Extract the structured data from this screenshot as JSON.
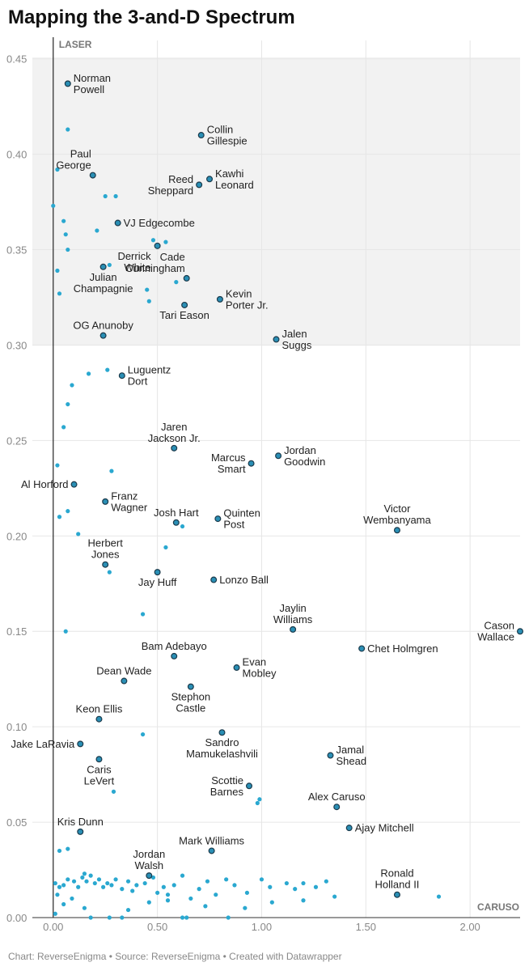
{
  "title": "Mapping the 3-and-D Spectrum",
  "footer": {
    "text": "Chart: ReverseEnigma • Source: ReverseEnigma • Created with Datawrapper"
  },
  "colors": {
    "point_fill": "#2aa8d0",
    "labeled_fill": "#2a8fb5",
    "point_stroke": "#1b3a4b",
    "region_fill": "#f2f2f2",
    "grid": "#e6e6e6",
    "axis": "#333333"
  },
  "chart_data": {
    "type": "scatter",
    "title": "Mapping the 3-and-D Spectrum",
    "xlabel": "",
    "ylabel": "",
    "xlim": [
      -0.1,
      2.24
    ],
    "ylim": [
      0.0,
      0.452
    ],
    "x_ticks": [
      0,
      0.5,
      1,
      1.5,
      2
    ],
    "x_tick_labels": [
      "0.00",
      "0.50",
      "1.00",
      "1.50",
      "2.00"
    ],
    "y_ticks": [
      0,
      0.05,
      0.1,
      0.15,
      0.2,
      0.25,
      0.3,
      0.35,
      0.4,
      0.45
    ],
    "y_tick_labels": [
      "0.00",
      "0.05",
      "0.10",
      "0.15",
      "0.20",
      "0.25",
      "0.30",
      "0.35",
      "0.40",
      "0.45"
    ],
    "highlight_region": {
      "y_from": 0.3,
      "y_to": 0.45
    },
    "corner_labels": {
      "top_left": "LASER",
      "bottom_right": "CARUSO"
    },
    "labeled_points": [
      {
        "name": "Norman\nPowell",
        "x": 0.07,
        "y": 0.437,
        "pos": "right"
      },
      {
        "name": "Collin\nGillespie",
        "x": 0.71,
        "y": 0.41,
        "pos": "right"
      },
      {
        "name": "Paul\nGeorge",
        "x": 0.19,
        "y": 0.389,
        "pos": "above-left"
      },
      {
        "name": "Kawhi\nLeonard",
        "x": 0.75,
        "y": 0.387,
        "pos": "right"
      },
      {
        "name": "Reed\nSheppard",
        "x": 0.7,
        "y": 0.384,
        "pos": "left"
      },
      {
        "name": "VJ Edgecombe",
        "x": 0.31,
        "y": 0.364,
        "pos": "right"
      },
      {
        "name": "Derrick\nWhite",
        "x": 0.5,
        "y": 0.352,
        "pos": "below-left"
      },
      {
        "name": "Cade\nCunningham",
        "x": 0.64,
        "y": 0.335,
        "pos": "above-left"
      },
      {
        "name": "Julian\nChampagnie",
        "x": 0.24,
        "y": 0.341,
        "pos": "below"
      },
      {
        "name": "Kevin\nPorter Jr.",
        "x": 0.8,
        "y": 0.324,
        "pos": "right"
      },
      {
        "name": "Tari Eason",
        "x": 0.63,
        "y": 0.321,
        "pos": "below"
      },
      {
        "name": "OG Anunoby",
        "x": 0.24,
        "y": 0.305,
        "pos": "above"
      },
      {
        "name": "Jalen\nSuggs",
        "x": 1.07,
        "y": 0.303,
        "pos": "right"
      },
      {
        "name": "Luguentz\nDort",
        "x": 0.33,
        "y": 0.284,
        "pos": "right"
      },
      {
        "name": "Jaren\nJackson Jr.",
        "x": 0.58,
        "y": 0.246,
        "pos": "above"
      },
      {
        "name": "Jordan\nGoodwin",
        "x": 1.08,
        "y": 0.242,
        "pos": "right"
      },
      {
        "name": "Marcus\nSmart",
        "x": 0.95,
        "y": 0.238,
        "pos": "left"
      },
      {
        "name": "Al Horford",
        "x": 0.1,
        "y": 0.227,
        "pos": "left"
      },
      {
        "name": "Franz\nWagner",
        "x": 0.25,
        "y": 0.218,
        "pos": "right"
      },
      {
        "name": "Josh Hart",
        "x": 0.59,
        "y": 0.207,
        "pos": "above"
      },
      {
        "name": "Quinten\nPost",
        "x": 0.79,
        "y": 0.209,
        "pos": "right"
      },
      {
        "name": "Victor\nWembanyama",
        "x": 1.65,
        "y": 0.203,
        "pos": "above"
      },
      {
        "name": "Herbert\nJones",
        "x": 0.25,
        "y": 0.185,
        "pos": "above"
      },
      {
        "name": "Jay Huff",
        "x": 0.5,
        "y": 0.181,
        "pos": "below"
      },
      {
        "name": "Lonzo Ball",
        "x": 0.77,
        "y": 0.177,
        "pos": "right"
      },
      {
        "name": "Jaylin\nWilliams",
        "x": 1.15,
        "y": 0.151,
        "pos": "above"
      },
      {
        "name": "Cason\nWallace",
        "x": 2.24,
        "y": 0.15,
        "pos": "left"
      },
      {
        "name": "Chet Holmgren",
        "x": 1.48,
        "y": 0.141,
        "pos": "right"
      },
      {
        "name": "Bam Adebayo",
        "x": 0.58,
        "y": 0.137,
        "pos": "above"
      },
      {
        "name": "Evan\nMobley",
        "x": 0.88,
        "y": 0.131,
        "pos": "right"
      },
      {
        "name": "Dean Wade",
        "x": 0.34,
        "y": 0.124,
        "pos": "above"
      },
      {
        "name": "Stephon\nCastle",
        "x": 0.66,
        "y": 0.121,
        "pos": "below"
      },
      {
        "name": "Keon Ellis",
        "x": 0.22,
        "y": 0.104,
        "pos": "above"
      },
      {
        "name": "Sandro\nMamukelashvili",
        "x": 0.81,
        "y": 0.097,
        "pos": "below"
      },
      {
        "name": "Jake LaRavia",
        "x": 0.13,
        "y": 0.091,
        "pos": "left"
      },
      {
        "name": "Jamal\nShead",
        "x": 1.33,
        "y": 0.085,
        "pos": "right"
      },
      {
        "name": "Caris\nLeVert",
        "x": 0.22,
        "y": 0.083,
        "pos": "below"
      },
      {
        "name": "Scottie\nBarnes",
        "x": 0.94,
        "y": 0.069,
        "pos": "left"
      },
      {
        "name": "Alex Caruso",
        "x": 1.36,
        "y": 0.058,
        "pos": "above"
      },
      {
        "name": "Ajay Mitchell",
        "x": 1.42,
        "y": 0.047,
        "pos": "right"
      },
      {
        "name": "Kris Dunn",
        "x": 0.13,
        "y": 0.045,
        "pos": "above"
      },
      {
        "name": "Mark Williams",
        "x": 0.76,
        "y": 0.035,
        "pos": "above"
      },
      {
        "name": "Jordan\nWalsh",
        "x": 0.46,
        "y": 0.022,
        "pos": "above"
      },
      {
        "name": "Ronald\nHolland II",
        "x": 1.65,
        "y": 0.012,
        "pos": "above"
      }
    ],
    "other_points": [
      [
        0.07,
        0.413
      ],
      [
        0.02,
        0.392
      ],
      [
        0.25,
        0.378
      ],
      [
        0.3,
        0.378
      ],
      [
        0.21,
        0.36
      ],
      [
        0.0,
        0.373
      ],
      [
        0.05,
        0.365
      ],
      [
        0.06,
        0.358
      ],
      [
        0.07,
        0.35
      ],
      [
        0.48,
        0.355
      ],
      [
        0.54,
        0.354
      ],
      [
        0.02,
        0.339
      ],
      [
        0.03,
        0.327
      ],
      [
        0.27,
        0.342
      ],
      [
        0.59,
        0.333
      ],
      [
        0.45,
        0.329
      ],
      [
        0.46,
        0.323
      ],
      [
        0.26,
        0.287
      ],
      [
        0.17,
        0.285
      ],
      [
        0.09,
        0.279
      ],
      [
        0.07,
        0.269
      ],
      [
        0.05,
        0.257
      ],
      [
        0.02,
        0.237
      ],
      [
        0.28,
        0.234
      ],
      [
        0.07,
        0.213
      ],
      [
        0.03,
        0.21
      ],
      [
        0.12,
        0.201
      ],
      [
        0.62,
        0.205
      ],
      [
        0.54,
        0.194
      ],
      [
        0.27,
        0.181
      ],
      [
        0.43,
        0.159
      ],
      [
        0.06,
        0.15
      ],
      [
        0.43,
        0.096
      ],
      [
        0.29,
        0.066
      ],
      [
        0.99,
        0.062
      ],
      [
        0.98,
        0.06
      ],
      [
        0.03,
        0.035
      ],
      [
        0.07,
        0.036
      ],
      [
        0.01,
        0.018
      ],
      [
        0.03,
        0.016
      ],
      [
        0.05,
        0.017
      ],
      [
        0.07,
        0.02
      ],
      [
        0.1,
        0.019
      ],
      [
        0.12,
        0.016
      ],
      [
        0.14,
        0.021
      ],
      [
        0.15,
        0.023
      ],
      [
        0.16,
        0.019
      ],
      [
        0.18,
        0.022
      ],
      [
        0.2,
        0.018
      ],
      [
        0.22,
        0.02
      ],
      [
        0.24,
        0.016
      ],
      [
        0.26,
        0.018
      ],
      [
        0.28,
        0.017
      ],
      [
        0.3,
        0.02
      ],
      [
        0.33,
        0.015
      ],
      [
        0.36,
        0.019
      ],
      [
        0.38,
        0.014
      ],
      [
        0.4,
        0.017
      ],
      [
        0.44,
        0.018
      ],
      [
        0.48,
        0.021
      ],
      [
        0.5,
        0.013
      ],
      [
        0.53,
        0.016
      ],
      [
        0.55,
        0.012
      ],
      [
        0.58,
        0.017
      ],
      [
        0.62,
        0.022
      ],
      [
        0.66,
        0.01
      ],
      [
        0.7,
        0.015
      ],
      [
        0.74,
        0.019
      ],
      [
        0.78,
        0.012
      ],
      [
        0.83,
        0.02
      ],
      [
        0.87,
        0.017
      ],
      [
        0.93,
        0.013
      ],
      [
        1.0,
        0.02
      ],
      [
        1.04,
        0.016
      ],
      [
        1.12,
        0.018
      ],
      [
        1.16,
        0.015
      ],
      [
        1.2,
        0.018
      ],
      [
        1.26,
        0.016
      ],
      [
        1.31,
        0.019
      ],
      [
        1.35,
        0.011
      ],
      [
        1.85,
        0.011
      ],
      [
        0.02,
        0.012
      ],
      [
        0.05,
        0.007
      ],
      [
        0.09,
        0.01
      ],
      [
        0.46,
        0.008
      ],
      [
        0.36,
        0.004
      ],
      [
        0.01,
        0.002
      ],
      [
        0.18,
        0.0
      ],
      [
        0.27,
        0.0
      ],
      [
        0.33,
        0.0
      ],
      [
        0.62,
        0.0
      ],
      [
        0.64,
        0.0
      ],
      [
        0.84,
        0.0
      ],
      [
        0.55,
        0.009
      ],
      [
        0.73,
        0.006
      ],
      [
        0.92,
        0.005
      ],
      [
        1.05,
        0.008
      ],
      [
        1.2,
        0.009
      ],
      [
        0.15,
        0.005
      ]
    ]
  }
}
